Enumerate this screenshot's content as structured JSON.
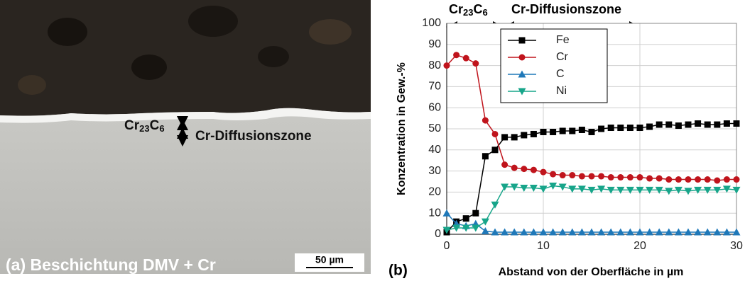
{
  "micrograph": {
    "caption": "(a) Beschichtung DMV + Cr",
    "layer_label": [
      "Cr",
      "23",
      "C",
      "6"
    ],
    "zone_label": "Cr-Diffusionszone",
    "scale_bar": "50 µm"
  },
  "chart_data": {
    "type": "line",
    "panel_label": "(b)",
    "annotations": {
      "carbide": [
        "Cr",
        "23",
        "C",
        "6"
      ],
      "zone": "Cr-Diffusionszone"
    },
    "x_label": "Abstand von der Oberfläche in µm",
    "y_label": "Konzentration in Gew.-%",
    "x": [
      0,
      1,
      2,
      3,
      4,
      5,
      6,
      7,
      8,
      9,
      10,
      11,
      12,
      13,
      14,
      15,
      16,
      17,
      18,
      19,
      20,
      21,
      22,
      23,
      24,
      25,
      26,
      27,
      28,
      29,
      30
    ],
    "series": [
      {
        "name": "Fe",
        "color": "#000000",
        "marker": "square",
        "values": [
          1,
          6,
          7.5,
          10,
          37,
          40,
          46,
          46,
          47,
          47.5,
          48.5,
          48.5,
          49,
          49,
          49.5,
          48.5,
          50,
          50.5,
          50.5,
          50.5,
          50.5,
          51,
          52,
          52,
          51.5,
          52,
          52.5,
          52,
          52,
          52.5,
          52.5
        ]
      },
      {
        "name": "Cr",
        "color": "#c0141c",
        "marker": "circle",
        "values": [
          80,
          85,
          83.5,
          81,
          54,
          47.5,
          33,
          31.5,
          31,
          30.5,
          29.5,
          28.5,
          28,
          28,
          27.5,
          27.5,
          27.5,
          27,
          27,
          27,
          27,
          26.5,
          26.5,
          26,
          26,
          26,
          26,
          26,
          25.5,
          26,
          26
        ]
      },
      {
        "name": "C",
        "color": "#1f78b8",
        "marker": "triangle-up",
        "values": [
          10,
          5,
          4,
          5,
          1.5,
          1,
          1,
          1,
          1,
          1,
          1,
          1,
          1,
          1,
          1,
          1,
          1,
          1,
          1,
          1,
          1,
          1,
          1,
          1,
          1,
          1,
          1,
          1,
          1,
          1,
          1
        ]
      },
      {
        "name": "Ni",
        "color": "#17a58a",
        "marker": "triangle-down",
        "values": [
          2,
          3,
          3,
          3,
          6,
          14,
          22.5,
          22.5,
          22,
          22,
          21.5,
          23,
          22.5,
          21.5,
          21.5,
          21,
          21.5,
          21,
          21,
          21,
          21,
          21,
          21,
          20.5,
          21,
          20.5,
          21,
          21,
          21,
          21.5,
          21
        ]
      }
    ],
    "xlim": [
      0,
      30
    ],
    "ylim": [
      0,
      100
    ],
    "xticks": [
      0,
      10,
      20,
      30
    ],
    "yticks": [
      0,
      10,
      20,
      30,
      40,
      50,
      60,
      70,
      80,
      90,
      100
    ],
    "grid": true,
    "legend": "upper left"
  }
}
